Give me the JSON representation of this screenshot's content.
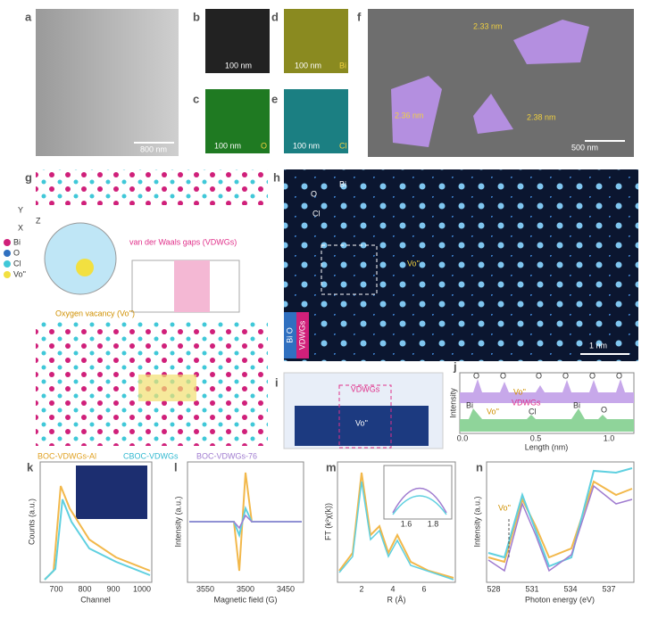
{
  "panels": {
    "a": {
      "label": "a",
      "scale_bar": "800 nm"
    },
    "b": {
      "label": "b",
      "scale_bar": "100 nm"
    },
    "c": {
      "label": "c",
      "scale_bar": "100 nm",
      "element": "O"
    },
    "d": {
      "label": "d",
      "scale_bar": "100 nm",
      "element": "Bi"
    },
    "e": {
      "label": "e",
      "scale_bar": "100 nm",
      "element": "Cl"
    },
    "f": {
      "label": "f",
      "heights": [
        "2.33 nm",
        "2.36 nm",
        "2.38 nm"
      ],
      "scale_bar": "500 nm"
    },
    "g": {
      "label": "g",
      "legend": [
        "Bi",
        "O",
        "Cl",
        "Vo''"
      ],
      "axes": [
        "Y",
        "Z",
        "X"
      ],
      "vdwg": "van der Waals gaps (VDWGs)",
      "vacancy": "Oxygen vacancy (Vo'')"
    },
    "h": {
      "label": "h",
      "legend": [
        "Bi",
        "O",
        "Cl"
      ],
      "vacancy": "Vo''",
      "side": [
        "Bi O",
        "VDWGs"
      ],
      "scale_bar": "1 nm"
    },
    "i": {
      "label": "i",
      "vdwg": "VDWGs",
      "vacancy": "Vo''"
    },
    "j": {
      "label": "j",
      "top": [
        "O",
        "O",
        "O",
        "Vo''",
        "O",
        "O",
        "O"
      ],
      "bottom": [
        "Bi",
        "Vo''",
        "VDWGs",
        "Cl",
        "Bi",
        "O"
      ],
      "y_label": "Intensity",
      "x_ticks": [
        "0.0",
        "0.5",
        "1.0"
      ],
      "x_label": "Length (nm)"
    },
    "legend": [
      "BOC-VDWGs-Al",
      "CBOC-VDWGs",
      "BOC-VDWGs-76"
    ],
    "k": {
      "label": "k",
      "y_label": "Counts (a.u.)",
      "x_ticks": [
        "700",
        "800",
        "900",
        "1000"
      ],
      "x_label": "Channel"
    },
    "l": {
      "label": "l",
      "y_label": "Intensity (a.u.)",
      "x_ticks": [
        "3550",
        "3500",
        "3450"
      ],
      "x_label": "Magnetic field (G)"
    },
    "m": {
      "label": "m",
      "y_label": "FT (k²χ(k))",
      "x_ticks": [
        "2",
        "4",
        "6"
      ],
      "x_label": "R (Å)",
      "inset_ticks": [
        "1.6",
        "1.8"
      ]
    },
    "n": {
      "label": "n",
      "y_label": "Intensity (a.u.)",
      "x_ticks": [
        "528",
        "531",
        "534",
        "537"
      ],
      "x_label": "Photon energy (eV)",
      "vacancy": "Vo''"
    }
  }
}
